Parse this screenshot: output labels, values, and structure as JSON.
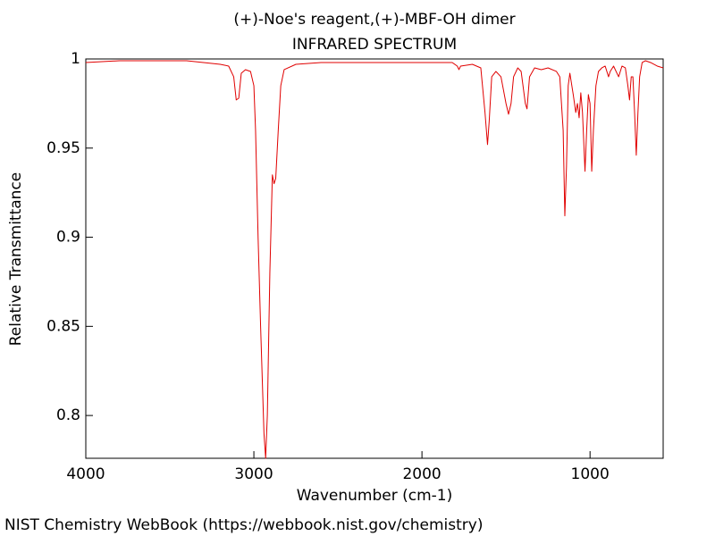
{
  "chart_data": {
    "type": "line",
    "title": "(+)-Noe's reagent,(+)-MBF-OH dimer",
    "subtitle": "INFRARED SPECTRUM",
    "x_label": "Wavenumber (cm-1)",
    "y_label": "Relative Transmittance",
    "source": "NIST Chemistry WebBook (https://webbook.nist.gov/chemistry)",
    "xlim": [
      4000,
      565
    ],
    "ylim": [
      0.776,
      1
    ],
    "xticks": [
      4000,
      3000,
      2000,
      1000
    ],
    "yticks": [
      0.8,
      0.85,
      0.9,
      0.95,
      1
    ],
    "x": [
      4000,
      3800,
      3600,
      3400,
      3300,
      3200,
      3150,
      3120,
      3105,
      3090,
      3075,
      3050,
      3020,
      3000,
      2990,
      2975,
      2960,
      2950,
      2940,
      2930,
      2920,
      2905,
      2890,
      2880,
      2870,
      2855,
      2840,
      2820,
      2750,
      2600,
      2400,
      2200,
      2000,
      1820,
      1790,
      1780,
      1770,
      1700,
      1650,
      1625,
      1610,
      1600,
      1585,
      1560,
      1530,
      1500,
      1485,
      1470,
      1455,
      1430,
      1410,
      1385,
      1375,
      1360,
      1330,
      1290,
      1250,
      1200,
      1180,
      1160,
      1150,
      1140,
      1130,
      1120,
      1100,
      1085,
      1075,
      1065,
      1055,
      1045,
      1030,
      1020,
      1010,
      1000,
      990,
      980,
      965,
      950,
      930,
      910,
      890,
      880,
      860,
      830,
      810,
      790,
      775,
      765,
      755,
      745,
      735,
      725,
      715,
      705,
      690,
      670,
      640,
      600,
      565
    ],
    "series": [
      {
        "name": "spectrum",
        "color": "#e00000",
        "values": [
          0.998,
          0.999,
          0.999,
          0.999,
          0.998,
          0.997,
          0.996,
          0.99,
          0.977,
          0.978,
          0.992,
          0.994,
          0.993,
          0.985,
          0.96,
          0.9,
          0.85,
          0.82,
          0.79,
          0.776,
          0.8,
          0.88,
          0.935,
          0.93,
          0.933,
          0.96,
          0.985,
          0.994,
          0.997,
          0.998,
          0.998,
          0.998,
          0.998,
          0.998,
          0.996,
          0.994,
          0.996,
          0.997,
          0.995,
          0.97,
          0.952,
          0.965,
          0.99,
          0.993,
          0.99,
          0.975,
          0.969,
          0.975,
          0.99,
          0.995,
          0.993,
          0.975,
          0.972,
          0.99,
          0.995,
          0.994,
          0.995,
          0.993,
          0.99,
          0.96,
          0.912,
          0.94,
          0.985,
          0.992,
          0.98,
          0.97,
          0.975,
          0.967,
          0.981,
          0.97,
          0.937,
          0.96,
          0.98,
          0.975,
          0.937,
          0.96,
          0.985,
          0.993,
          0.995,
          0.996,
          0.99,
          0.993,
          0.996,
          0.99,
          0.996,
          0.995,
          0.985,
          0.977,
          0.99,
          0.99,
          0.97,
          0.946,
          0.97,
          0.99,
          0.998,
          0.999,
          0.998,
          0.996,
          0.995
        ]
      }
    ]
  }
}
